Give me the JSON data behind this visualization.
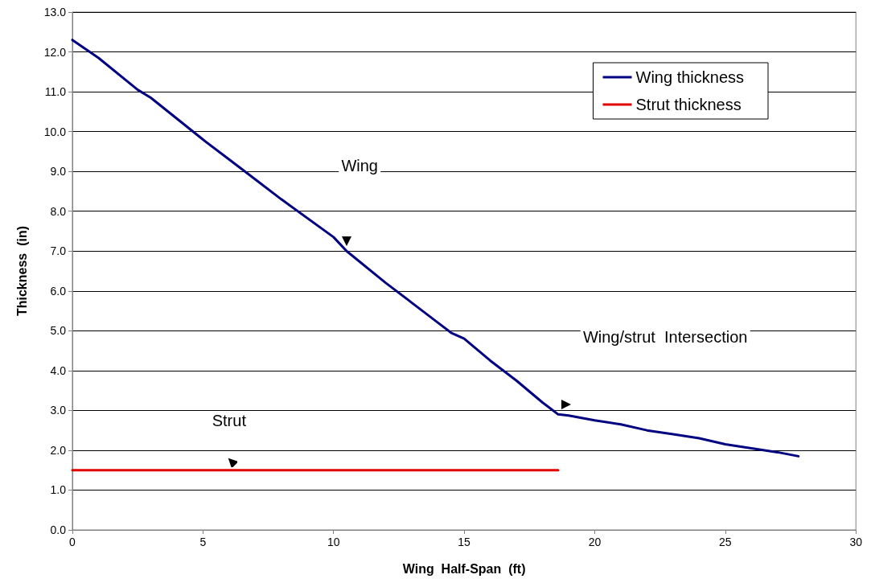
{
  "chart_data": {
    "type": "line",
    "xlabel": "Wing  Half-Span  (ft)",
    "ylabel": "Thickness  (in)",
    "xlim": [
      0,
      30
    ],
    "xticks": [
      0,
      5,
      10,
      15,
      20,
      25,
      30
    ],
    "ylim": [
      0,
      13
    ],
    "yticks": [
      {
        "value": 0,
        "label": "0.0"
      },
      {
        "value": 1,
        "label": "1.0"
      },
      {
        "value": 2,
        "label": "2.0"
      },
      {
        "value": 3,
        "label": "3.0"
      },
      {
        "value": 4,
        "label": "4.0"
      },
      {
        "value": 5,
        "label": "5.0"
      },
      {
        "value": 6,
        "label": "6.0"
      },
      {
        "value": 7,
        "label": "7.0"
      },
      {
        "value": 8,
        "label": "8.0"
      },
      {
        "value": 9,
        "label": "9.0"
      },
      {
        "value": 10,
        "label": "10.0"
      },
      {
        "value": 11,
        "label": "11.0"
      },
      {
        "value": 12,
        "label": "12.0"
      },
      {
        "value": 13,
        "label": "13.0"
      }
    ],
    "grid": "y",
    "legend": "top right",
    "marker": "none",
    "line_style": "solid",
    "series": [
      {
        "name": "Wing thickness",
        "color": "#000080",
        "x": [
          0,
          1,
          2.5,
          3,
          5,
          6,
          7,
          8,
          10,
          10.5,
          12,
          13,
          14,
          14.5,
          15,
          16,
          17,
          18,
          18.6,
          19,
          20,
          21,
          22,
          23,
          24,
          25,
          26,
          27,
          27.8
        ],
        "values": [
          12.3,
          11.85,
          11.05,
          10.85,
          9.8,
          9.3,
          8.8,
          8.3,
          7.35,
          7.0,
          6.2,
          5.7,
          5.2,
          4.95,
          4.8,
          4.25,
          3.75,
          3.2,
          2.9,
          2.87,
          2.75,
          2.65,
          2.5,
          2.4,
          2.3,
          2.15,
          2.05,
          1.95,
          1.85
        ]
      },
      {
        "name": "Strut thickness",
        "color": "#e00000",
        "x": [
          0,
          18.6
        ],
        "values": [
          1.5,
          1.5
        ]
      }
    ],
    "annotations": [
      "Wing",
      "Wing/strut  Intersection",
      "Strut"
    ]
  }
}
